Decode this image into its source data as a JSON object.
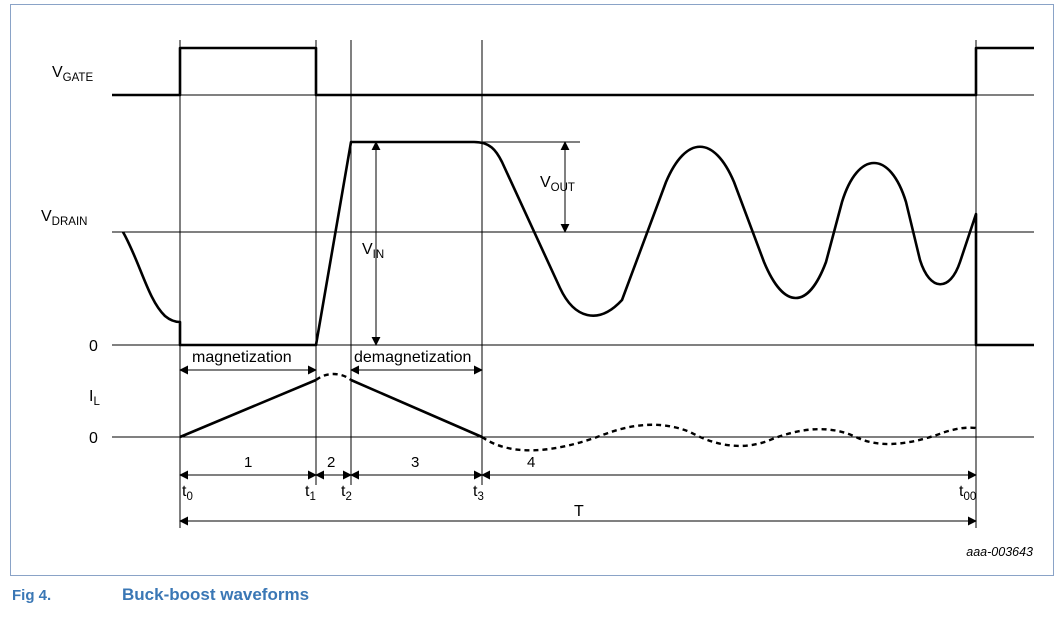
{
  "signals": {
    "vgate": {
      "main": "V",
      "sub": "GATE"
    },
    "vdrain": {
      "main": "V",
      "sub": "DRAIN"
    },
    "il": {
      "main": "I",
      "sub": "L"
    },
    "vout": {
      "main": "V",
      "sub": "OUT"
    },
    "vin": {
      "main": "V",
      "sub": "IN"
    }
  },
  "levels": {
    "drain_zero": "0",
    "il_zero": "0"
  },
  "phases": {
    "magnetization": "magnetization",
    "demagnetization": "demagnetization",
    "intervals": [
      "1",
      "2",
      "3",
      "4"
    ]
  },
  "times": [
    {
      "main": "t",
      "sub": "0"
    },
    {
      "main": "t",
      "sub": "1"
    },
    {
      "main": "t",
      "sub": "2"
    },
    {
      "main": "t",
      "sub": "3"
    },
    {
      "main": "t",
      "sub": "00"
    }
  ],
  "period": "T",
  "figure_code": "aaa-003643",
  "caption": {
    "number": "Fig 4.",
    "title": "Buck-boost waveforms"
  }
}
